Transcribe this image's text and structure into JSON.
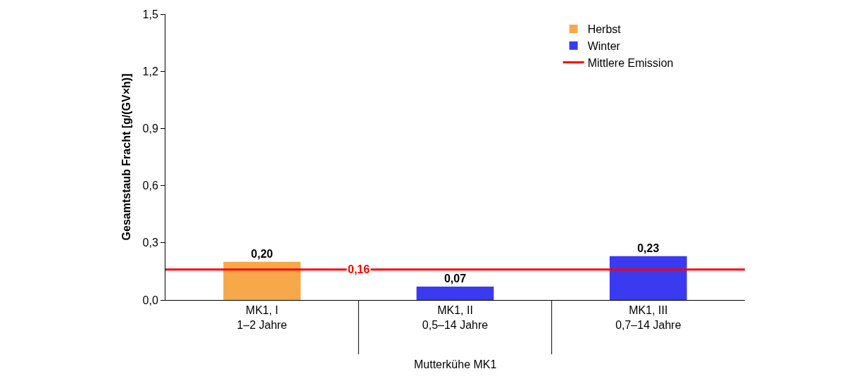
{
  "chart_data": {
    "type": "bar",
    "xlabel": "Mutterkühe MK1",
    "ylabel": "Gesamtstaub Fracht [g/(GV×h)]",
    "categories": [
      "MK1, I\n1–2 Jahre",
      "MK1, II\n0,5–14 Jahre",
      "MK1, III\n0,7–14 Jahre"
    ],
    "series": [
      {
        "name": "Herbst",
        "color": "#f7a84a",
        "values": [
          0.2,
          null,
          null
        ],
        "value_labels": [
          "0,20",
          null,
          null
        ]
      },
      {
        "name": "Winter",
        "color": "#3a3af0",
        "values": [
          null,
          0.07,
          0.23
        ],
        "value_labels": [
          null,
          "0,07",
          "0,23"
        ]
      }
    ],
    "ylim": [
      0,
      1.5
    ],
    "yticks": [
      {
        "value": 0,
        "label": "0,0"
      },
      {
        "value": 0.3,
        "label": "0,3"
      },
      {
        "value": 0.6,
        "label": "0,6"
      },
      {
        "value": 0.9,
        "label": "0,9"
      },
      {
        "value": 1.2,
        "label": "1,2"
      },
      {
        "value": 1.5,
        "label": "1,5"
      }
    ],
    "ref_lines": [
      {
        "axis": "y",
        "value": 0.16,
        "label": "Mittlere Emission",
        "color": "#ff0000",
        "line_style": "solid"
      }
    ],
    "annotations": [
      {
        "text": "0,16",
        "y": 0.16
      }
    ],
    "grid": false,
    "legend": "top right"
  }
}
